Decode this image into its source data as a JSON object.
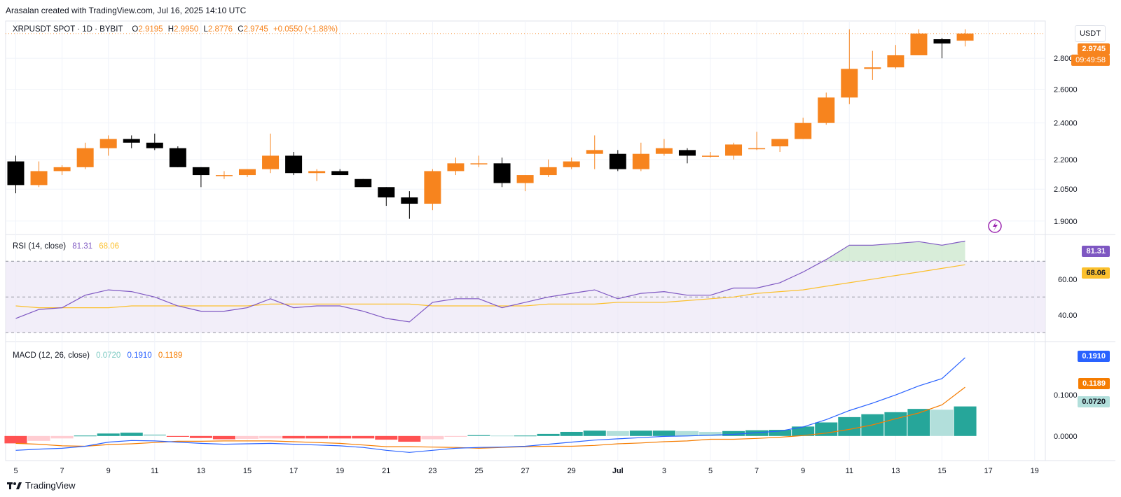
{
  "header": {
    "credit": "Arasalan created with TradingView.com, Jul 16, 2025 14:10 UTC"
  },
  "legend": {
    "symbol": "XRPUSDT SPOT · 1D · BYBIT",
    "open_label": "O",
    "open": "2.9195",
    "high_label": "H",
    "high": "2.9950",
    "low_label": "L",
    "low": "2.8776",
    "close_label": "C",
    "close": "2.9745",
    "change": "+0.0550 (+1.88%)"
  },
  "currency_button": "USDT",
  "price_pane": {
    "last_price": "2.9745",
    "countdown": "09:49:58"
  },
  "rsi_pane": {
    "title": "RSI (14, close)",
    "rsi_value": "81.31",
    "ma_value": "68.06"
  },
  "macd_pane": {
    "title": "MACD (12, 26, close)",
    "hist_value": "0.0720",
    "macd_value": "0.1910",
    "signal_value": "0.1189"
  },
  "footer": {
    "brand": "TradingView"
  },
  "colors": {
    "up": "#f7841e",
    "down": "#000000",
    "rsi_line": "#7e57c2",
    "rsi_ma": "#fbc02d",
    "rsi_band": "#ede7f6",
    "macd_line": "#2962ff",
    "signal_line": "#f57c00",
    "hist_up_strong": "#26a69a",
    "hist_up_weak": "#b2dfdb",
    "hist_down_strong": "#ff5252",
    "hist_down_weak": "#ffcdd2",
    "flash_icon": "#9c27b0"
  },
  "chart_data": [
    {
      "type": "candlestick",
      "title": "XRPUSDT SPOT · 1D · BYBIT",
      "ylabel": "USDT",
      "x_tick_labels": [
        "5",
        "7",
        "9",
        "11",
        "13",
        "15",
        "17",
        "19",
        "21",
        "23",
        "25",
        "27",
        "29",
        "Jul",
        "3",
        "5",
        "7",
        "9",
        "11",
        "13",
        "15",
        "17",
        "19"
      ],
      "y_tick_labels": [
        "1.9000",
        "2.0500",
        "2.2000",
        "2.4000",
        "2.6000",
        "2.8000"
      ],
      "y_ticks": [
        1.9,
        2.05,
        2.2,
        2.4,
        2.6,
        2.8
      ],
      "ylim": [
        1.84,
        3.06
      ],
      "scale": "log",
      "grid": true,
      "dates": [
        "2025-06-05",
        "2025-06-06",
        "2025-06-07",
        "2025-06-08",
        "2025-06-09",
        "2025-06-10",
        "2025-06-11",
        "2025-06-12",
        "2025-06-13",
        "2025-06-14",
        "2025-06-15",
        "2025-06-16",
        "2025-06-17",
        "2025-06-18",
        "2025-06-19",
        "2025-06-20",
        "2025-06-21",
        "2025-06-22",
        "2025-06-23",
        "2025-06-24",
        "2025-06-25",
        "2025-06-26",
        "2025-06-27",
        "2025-06-28",
        "2025-06-29",
        "2025-06-30",
        "2025-07-01",
        "2025-07-02",
        "2025-07-03",
        "2025-07-04",
        "2025-07-05",
        "2025-07-06",
        "2025-07-07",
        "2025-07-08",
        "2025-07-09",
        "2025-07-10",
        "2025-07-11",
        "2025-07-12",
        "2025-07-13",
        "2025-07-14",
        "2025-07-15",
        "2025-07-16"
      ],
      "open": [
        2.19,
        2.07,
        2.14,
        2.16,
        2.26,
        2.31,
        2.29,
        2.26,
        2.16,
        2.12,
        2.12,
        2.15,
        2.22,
        2.13,
        2.14,
        2.1,
        2.06,
        2.01,
        1.98,
        2.14,
        2.18,
        2.18,
        2.08,
        2.12,
        2.16,
        2.23,
        2.23,
        2.15,
        2.23,
        2.25,
        2.22,
        2.22,
        2.26,
        2.27,
        2.31,
        2.4,
        2.55,
        2.73,
        2.74,
        2.82,
        2.93,
        2.92
      ],
      "high": [
        2.22,
        2.19,
        2.17,
        2.29,
        2.33,
        2.33,
        2.34,
        2.27,
        2.16,
        2.14,
        2.15,
        2.34,
        2.24,
        2.15,
        2.15,
        2.1,
        2.06,
        2.04,
        2.15,
        2.21,
        2.22,
        2.21,
        2.12,
        2.2,
        2.21,
        2.33,
        2.25,
        2.29,
        2.31,
        2.26,
        2.24,
        2.29,
        2.35,
        2.31,
        2.43,
        2.58,
        3.0,
        2.85,
        2.89,
        3.0,
        2.94,
        3.0
      ],
      "low": [
        2.03,
        2.06,
        2.12,
        2.15,
        2.22,
        2.26,
        2.25,
        2.16,
        2.06,
        2.1,
        2.11,
        2.13,
        2.12,
        2.09,
        2.12,
        2.07,
        1.97,
        1.91,
        1.95,
        2.12,
        2.16,
        2.06,
        2.04,
        2.11,
        2.15,
        2.15,
        2.14,
        2.14,
        2.22,
        2.18,
        2.21,
        2.2,
        2.25,
        2.24,
        2.31,
        2.39,
        2.51,
        2.66,
        2.73,
        2.82,
        2.8,
        2.88
      ],
      "close": [
        2.07,
        2.14,
        2.16,
        2.26,
        2.31,
        2.29,
        2.26,
        2.16,
        2.12,
        2.12,
        2.15,
        2.22,
        2.13,
        2.14,
        2.12,
        2.06,
        2.01,
        1.98,
        2.14,
        2.18,
        2.18,
        2.08,
        2.12,
        2.16,
        2.19,
        2.25,
        2.15,
        2.23,
        2.26,
        2.22,
        2.22,
        2.28,
        2.26,
        2.31,
        2.4,
        2.55,
        2.73,
        2.74,
        2.82,
        2.97,
        2.9,
        2.97
      ]
    },
    {
      "type": "line",
      "title": "RSI (14, close)",
      "y_tick_labels": [
        "40.00",
        "60.00"
      ],
      "y_ticks": [
        40,
        60
      ],
      "ylim": [
        25,
        85
      ],
      "bands": [
        30,
        50,
        70
      ],
      "series": [
        {
          "name": "RSI",
          "values": [
            38,
            43,
            44,
            51,
            54,
            53,
            50,
            45,
            42,
            42,
            44,
            49,
            44,
            45,
            45,
            42,
            38,
            36,
            47,
            49,
            49,
            44,
            47,
            50,
            52,
            54,
            49,
            52,
            53,
            51,
            51,
            55,
            55,
            58,
            64,
            71,
            79,
            79,
            80,
            81,
            79,
            81.31
          ]
        },
        {
          "name": "RSI-based MA",
          "values": [
            45,
            44,
            44,
            44,
            44,
            45,
            45,
            45,
            45,
            45,
            45,
            46,
            46,
            46,
            46,
            46,
            46,
            46,
            45,
            45,
            45,
            45,
            45,
            46,
            46,
            46,
            47,
            47,
            47,
            48,
            49,
            50,
            52,
            53,
            54,
            56,
            58,
            60,
            62,
            64,
            66,
            68.06
          ]
        }
      ]
    },
    {
      "type": "bar",
      "title": "MACD (12, 26, close)",
      "y_tick_labels": [
        "0.0000",
        "0.1000"
      ],
      "y_ticks": [
        0.0,
        0.1
      ],
      "ylim": [
        -0.06,
        0.23
      ],
      "series": [
        {
          "name": "Histogram",
          "values": [
            -0.018,
            -0.012,
            -0.006,
            0.001,
            0.006,
            0.008,
            0.004,
            -0.002,
            -0.005,
            -0.008,
            -0.007,
            -0.006,
            -0.006,
            -0.006,
            -0.006,
            -0.006,
            -0.009,
            -0.014,
            -0.008,
            -0.002,
            0.002,
            0.001,
            0.001,
            0.005,
            0.01,
            0.013,
            0.012,
            0.013,
            0.013,
            0.012,
            0.01,
            0.012,
            0.014,
            0.015,
            0.023,
            0.033,
            0.046,
            0.053,
            0.058,
            0.066,
            0.064,
            0.072
          ]
        },
        {
          "name": "MACD",
          "values": [
            -0.035,
            -0.032,
            -0.03,
            -0.025,
            -0.015,
            -0.011,
            -0.012,
            -0.015,
            -0.018,
            -0.02,
            -0.019,
            -0.018,
            -0.02,
            -0.022,
            -0.024,
            -0.028,
            -0.035,
            -0.04,
            -0.035,
            -0.03,
            -0.028,
            -0.027,
            -0.025,
            -0.02,
            -0.015,
            -0.01,
            -0.007,
            -0.004,
            -0.001,
            0.0,
            0.002,
            0.004,
            0.008,
            0.012,
            0.022,
            0.04,
            0.062,
            0.08,
            0.1,
            0.122,
            0.14,
            0.191
          ]
        },
        {
          "name": "Signal",
          "values": [
            -0.018,
            -0.02,
            -0.024,
            -0.025,
            -0.021,
            -0.019,
            -0.016,
            -0.013,
            -0.013,
            -0.012,
            -0.012,
            -0.012,
            -0.014,
            -0.016,
            -0.018,
            -0.022,
            -0.026,
            -0.026,
            -0.027,
            -0.028,
            -0.03,
            -0.028,
            -0.026,
            -0.025,
            -0.025,
            -0.023,
            -0.019,
            -0.017,
            -0.014,
            -0.012,
            -0.008,
            -0.008,
            -0.006,
            -0.003,
            0.001,
            0.007,
            0.016,
            0.027,
            0.042,
            0.056,
            0.076,
            0.1189
          ]
        }
      ]
    }
  ]
}
